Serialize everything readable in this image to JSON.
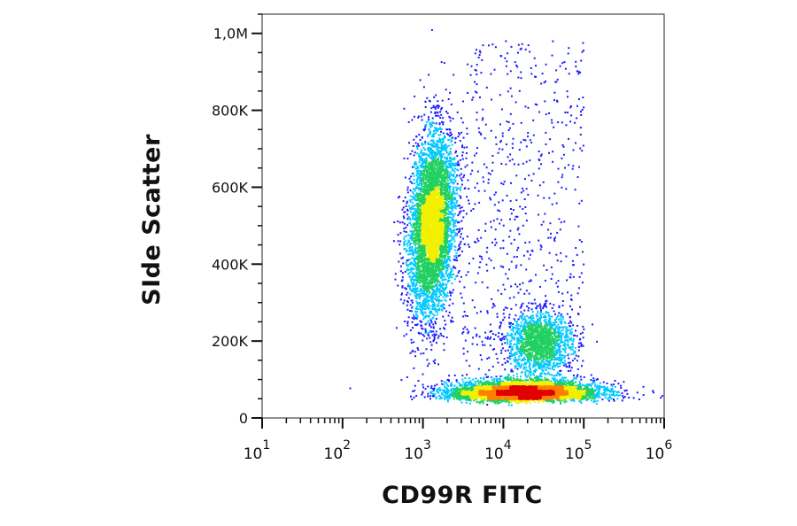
{
  "chart_data": {
    "type": "scatter",
    "subtype": "flow-cytometry-density-plot",
    "title": "",
    "xlabel": "CD99R FITC",
    "ylabel": "SIde Scatter",
    "x_scale": "log",
    "xlim": [
      10,
      1000000
    ],
    "ylim": [
      0,
      1050000
    ],
    "x_ticks": [
      {
        "value": 10,
        "base": "10",
        "exp": "1"
      },
      {
        "value": 100,
        "base": "10",
        "exp": "2"
      },
      {
        "value": 1000,
        "base": "10",
        "exp": "3"
      },
      {
        "value": 10000,
        "base": "10",
        "exp": "4"
      },
      {
        "value": 100000,
        "base": "10",
        "exp": "5"
      },
      {
        "value": 1000000,
        "base": "10",
        "exp": "6"
      }
    ],
    "y_ticks": [
      {
        "value": 0,
        "label": "0"
      },
      {
        "value": 200000,
        "label": "200K"
      },
      {
        "value": 400000,
        "label": "400K"
      },
      {
        "value": 600000,
        "label": "600K"
      },
      {
        "value": 800000,
        "label": "800K"
      },
      {
        "value": 1000000,
        "label": "1,0M"
      }
    ],
    "grid": false,
    "legend": "none",
    "color_scale": [
      "#1a1aff",
      "#00c8ff",
      "#20d060",
      "#f0f000",
      "#ff8000",
      "#e00000"
    ],
    "populations": [
      {
        "center_x": 1300,
        "center_y": 500000,
        "spread_log_x": 0.14,
        "spread_y": 95000,
        "density": "high"
      },
      {
        "center_x": 18000,
        "center_y": 65000,
        "spread_log_x": 0.45,
        "spread_y": 16000,
        "density": "high"
      },
      {
        "center_x": 28000,
        "center_y": 195000,
        "spread_log_x": 0.2,
        "spread_y": 40000,
        "density": "medium"
      },
      {
        "center_x": 40000,
        "center_y": 450000,
        "spread_log_x": 0.45,
        "spread_y": 220000,
        "density": "sparse"
      }
    ]
  }
}
